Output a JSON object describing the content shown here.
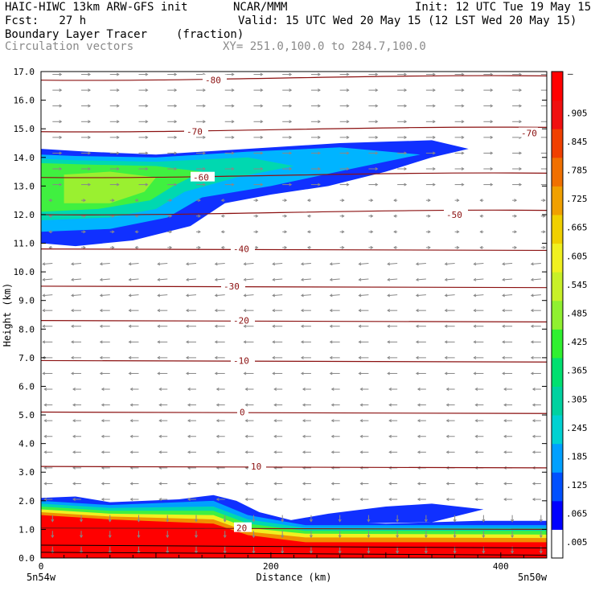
{
  "header": {
    "model": "HAIC-HIWC 13km ARW-GFS init",
    "org": "NCAR/MMM",
    "init": "Init: 12 UTC Tue 19 May 15",
    "fcst": "Fcst:   27 h",
    "valid": "Valid: 15 UTC Wed 20 May 15 (12 LST Wed 20 May 15)",
    "field": "Boundary Layer Tracer",
    "units": "(fraction)",
    "vectors": "Circulation vectors",
    "xy": "XY= 251.0,100.0 to 284.7,100.0"
  },
  "chart_data": {
    "type": "heatmap",
    "title": "Boundary Layer Tracer",
    "units": "(fraction)",
    "xlabel": "Distance (km)",
    "ylabel": "Height (km)",
    "xlim": [
      0,
      440
    ],
    "ylim": [
      0,
      17
    ],
    "x_ticks": [
      0,
      200,
      400
    ],
    "y_ticks": [
      "0.0",
      "1.0",
      "2.0",
      "3.0",
      "4.0",
      "5.0",
      "6.0",
      "7.0",
      "8.0",
      "9.0",
      "10.0",
      "11.0",
      "12.0",
      "13.0",
      "14.0",
      "15.0",
      "16.0",
      "17.0"
    ],
    "x_endpoints": {
      "left": "5n54w",
      "right": "5n50w"
    },
    "colorbar": {
      "labels": [
        ".005",
        ".065",
        ".125",
        ".185",
        ".245",
        ".305",
        ".365",
        ".425",
        ".485",
        ".545",
        ".605",
        ".665",
        ".725",
        ".785",
        ".845",
        ".905"
      ],
      "top_label": "–",
      "colors": [
        "#ffffff",
        "#0000ff",
        "#0050ff",
        "#00a0ff",
        "#00d2d2",
        "#00d2a0",
        "#00e070",
        "#30f030",
        "#90f030",
        "#c8f028",
        "#f0f020",
        "#f0d000",
        "#f0a000",
        "#f07000",
        "#f04000",
        "#f01010",
        "#ff0000"
      ]
    },
    "temperature_contours": {
      "color": "#8b1010",
      "levels": [
        {
          "value": -80,
          "label": "-80",
          "height": 16.7
        },
        {
          "value": -70,
          "label": "-70",
          "height": 14.9
        },
        {
          "value": -60,
          "label": "-60",
          "height": 13.3
        },
        {
          "value": -50,
          "label": "-50",
          "height": 12.0
        },
        {
          "value": -40,
          "label": "-40",
          "height": 10.8
        },
        {
          "value": -30,
          "label": "-30",
          "height": 9.5
        },
        {
          "value": -20,
          "label": "-20",
          "height": 8.3
        },
        {
          "value": -10,
          "label": "-10",
          "height": 6.9
        },
        {
          "value": 0,
          "label": "0",
          "height": 5.1
        },
        {
          "value": 10,
          "label": "10",
          "height": 3.2
        },
        {
          "value": 20,
          "label": "20",
          "height": 1.05
        }
      ]
    },
    "upper_plume": [
      [
        0,
        11.0
      ],
      [
        30,
        10.9
      ],
      [
        80,
        11.1
      ],
      [
        130,
        11.6
      ],
      [
        160,
        12.4
      ],
      [
        200,
        12.7
      ],
      [
        250,
        13.0
      ],
      [
        300,
        13.5
      ],
      [
        340,
        14.0
      ],
      [
        372,
        14.3
      ],
      [
        340,
        14.6
      ],
      [
        260,
        14.5
      ],
      [
        180,
        14.3
      ],
      [
        100,
        14.1
      ],
      [
        40,
        14.2
      ],
      [
        0,
        14.3
      ]
    ],
    "boundary_layer_top": [
      [
        0,
        2.1
      ],
      [
        30,
        2.15
      ],
      [
        60,
        1.95
      ],
      [
        90,
        2.0
      ],
      [
        120,
        2.05
      ],
      [
        150,
        2.2
      ],
      [
        170,
        2.0
      ],
      [
        190,
        1.6
      ],
      [
        220,
        1.3
      ],
      [
        260,
        1.25
      ],
      [
        300,
        1.2
      ],
      [
        340,
        1.25
      ],
      [
        380,
        1.3
      ],
      [
        440,
        1.3
      ]
    ]
  }
}
